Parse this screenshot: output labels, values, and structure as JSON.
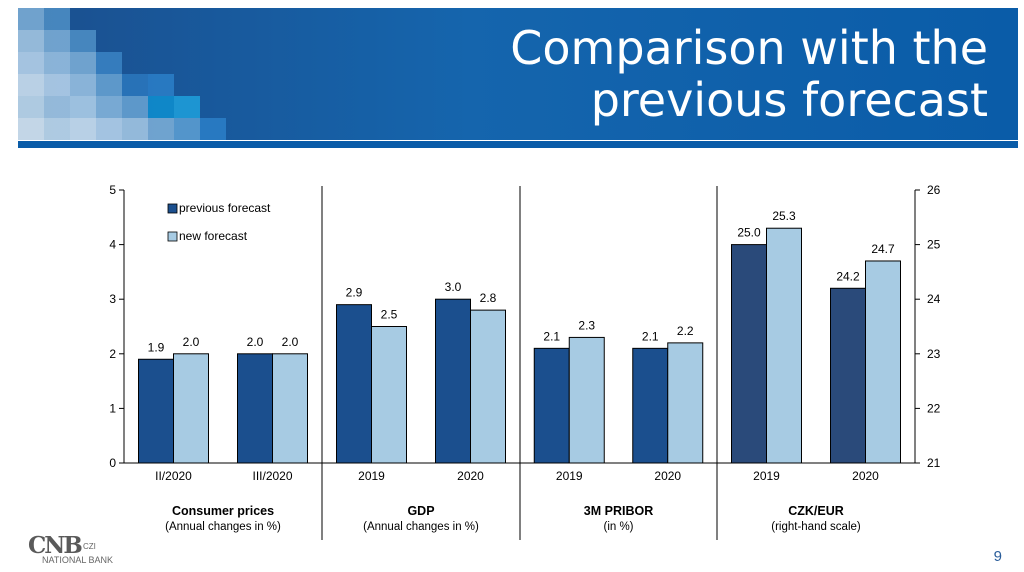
{
  "title_line1": "Comparison with the",
  "title_line2": "previous forecast",
  "page_number": "9",
  "logo": {
    "mark": "CNB",
    "czi": "CZI",
    "bank": "NATIONAL BANK"
  },
  "colors": {
    "banner": "#1565ad",
    "previous": "#1b4f8e",
    "previous_czk": "#2a4a7a",
    "new": "#a7cbe3",
    "title_text": "#ffffff"
  },
  "chart_data": {
    "type": "bar",
    "series_names": [
      "previous forecast",
      "new forecast"
    ],
    "legend_position": "top-left",
    "left_axis": {
      "min": 0,
      "max": 5,
      "ticks": [
        0,
        1,
        2,
        3,
        4,
        5
      ]
    },
    "right_axis": {
      "min": 21,
      "max": 26,
      "ticks": [
        21,
        22,
        23,
        24,
        25,
        26
      ]
    },
    "groups": [
      {
        "name": "Consumer prices",
        "subtitle": "(Annual changes in %)",
        "axis": "left",
        "categories": [
          "II/2020",
          "III/2020"
        ],
        "previous": [
          1.9,
          2.0
        ],
        "new": [
          2.0,
          2.0
        ],
        "labels_previous": [
          "1.9",
          "2.0"
        ],
        "labels_new": [
          "2.0",
          "2.0"
        ]
      },
      {
        "name": "GDP",
        "subtitle": "(Annual changes in %)",
        "axis": "left",
        "categories": [
          "2019",
          "2020"
        ],
        "previous": [
          2.9,
          3.0
        ],
        "new": [
          2.5,
          2.8
        ],
        "labels_previous": [
          "2.9",
          "3.0"
        ],
        "labels_new": [
          "2.5",
          "2.8"
        ]
      },
      {
        "name": "3M PRIBOR",
        "subtitle": "(in %)",
        "axis": "left",
        "categories": [
          "2019",
          "2020"
        ],
        "previous": [
          2.1,
          2.1
        ],
        "new": [
          2.3,
          2.2
        ],
        "labels_previous": [
          "2.1",
          "2.1"
        ],
        "labels_new": [
          "2.3",
          "2.2"
        ]
      },
      {
        "name": "CZK/EUR",
        "subtitle": "(right-hand scale)",
        "axis": "right",
        "categories": [
          "2019",
          "2020"
        ],
        "previous": [
          25.0,
          24.2
        ],
        "new": [
          25.3,
          24.7
        ],
        "labels_previous": [
          "25.0",
          "24.2"
        ],
        "labels_new": [
          "25.3",
          "24.7"
        ]
      }
    ]
  }
}
